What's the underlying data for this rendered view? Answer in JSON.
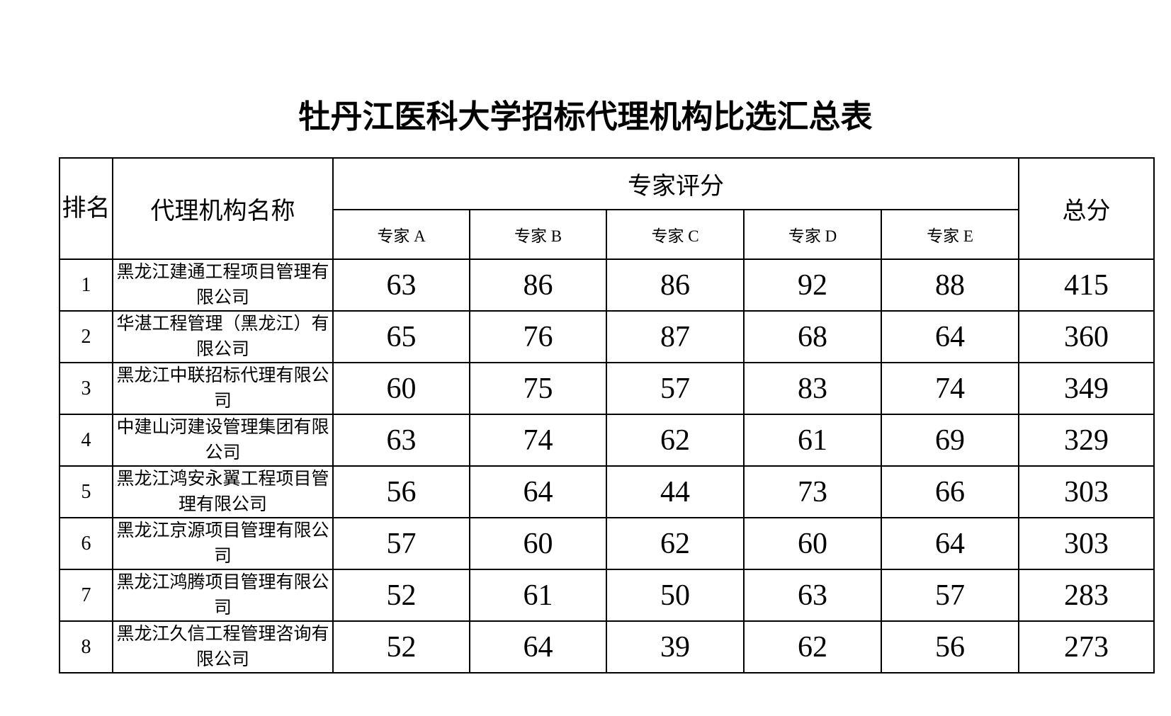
{
  "title": "牡丹江医科大学招标代理机构比选汇总表",
  "table": {
    "headers": {
      "rank": "排名",
      "agency": "代理机构名称",
      "expert_group": "专家评分",
      "experts": [
        "专家 A",
        "专家 B",
        "专家 C",
        "专家 D",
        "专家 E"
      ],
      "total": "总分"
    },
    "rows": [
      {
        "rank": "1",
        "agency": "黑龙江建通工程项目管理有限公司",
        "scores": [
          "63",
          "86",
          "86",
          "92",
          "88"
        ],
        "total": "415"
      },
      {
        "rank": "2",
        "agency": "华湛工程管理（黑龙江）有限公司",
        "scores": [
          "65",
          "76",
          "87",
          "68",
          "64"
        ],
        "total": "360"
      },
      {
        "rank": "3",
        "agency": "黑龙江中联招标代理有限公司",
        "scores": [
          "60",
          "75",
          "57",
          "83",
          "74"
        ],
        "total": "349"
      },
      {
        "rank": "4",
        "agency": "中建山河建设管理集团有限公司",
        "scores": [
          "63",
          "74",
          "62",
          "61",
          "69"
        ],
        "total": "329"
      },
      {
        "rank": "5",
        "agency": "黑龙江鸿安永翼工程项目管理有限公司",
        "scores": [
          "56",
          "64",
          "44",
          "73",
          "66"
        ],
        "total": "303"
      },
      {
        "rank": "6",
        "agency": "黑龙江京源项目管理有限公司",
        "scores": [
          "57",
          "60",
          "62",
          "60",
          "64"
        ],
        "total": "303"
      },
      {
        "rank": "7",
        "agency": "黑龙江鸿腾项目管理有限公司",
        "scores": [
          "52",
          "61",
          "50",
          "63",
          "57"
        ],
        "total": "283"
      },
      {
        "rank": "8",
        "agency": "黑龙江久信工程管理咨询有限公司",
        "scores": [
          "52",
          "64",
          "39",
          "62",
          "56"
        ],
        "total": "273"
      }
    ]
  },
  "colors": {
    "background": "#ffffff",
    "text": "#000000",
    "border": "#000000"
  }
}
